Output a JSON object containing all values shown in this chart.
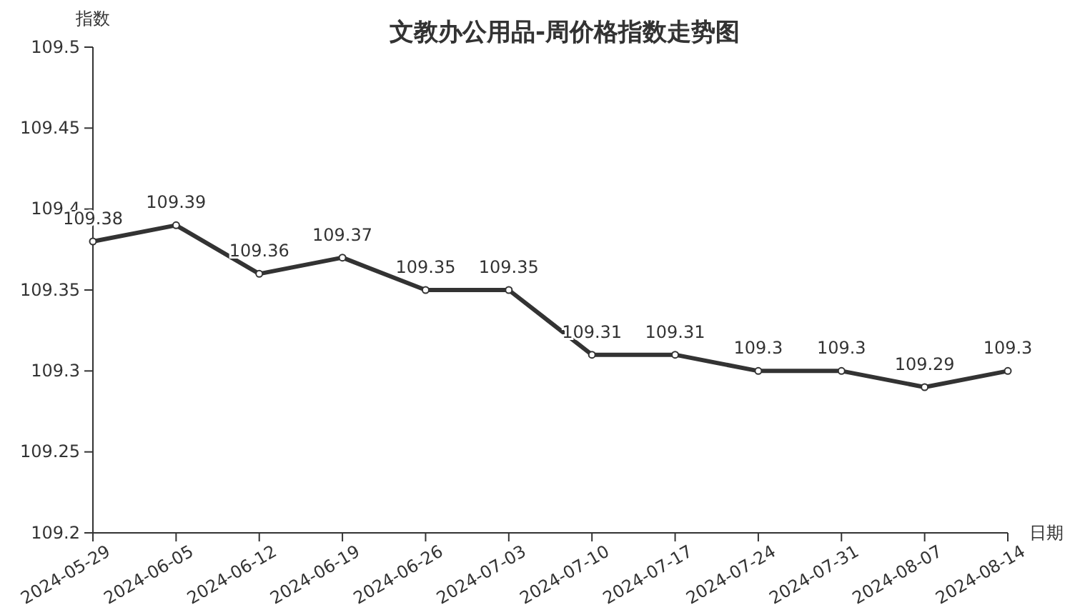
{
  "chart_data": {
    "type": "line",
    "title": "文教办公用品-周价格指数走势图",
    "xlabel": "日期",
    "ylabel": "指数",
    "categories": [
      "2024-05-29",
      "2024-06-05",
      "2024-06-12",
      "2024-06-19",
      "2024-06-26",
      "2024-07-03",
      "2024-07-10",
      "2024-07-17",
      "2024-07-24",
      "2024-07-31",
      "2024-08-07",
      "2024-08-14"
    ],
    "series": [
      {
        "color": "#333333",
        "values": [
          109.38,
          109.39,
          109.36,
          109.37,
          109.35,
          109.35,
          109.31,
          109.31,
          109.3,
          109.3,
          109.29,
          109.3
        ]
      }
    ],
    "ylim": [
      109.2,
      109.5
    ],
    "yticks": [
      109.2,
      109.25,
      109.3,
      109.35,
      109.4,
      109.45,
      109.5
    ],
    "grid": false,
    "marker": "circle",
    "line_style": "solid",
    "data_labels": true
  }
}
